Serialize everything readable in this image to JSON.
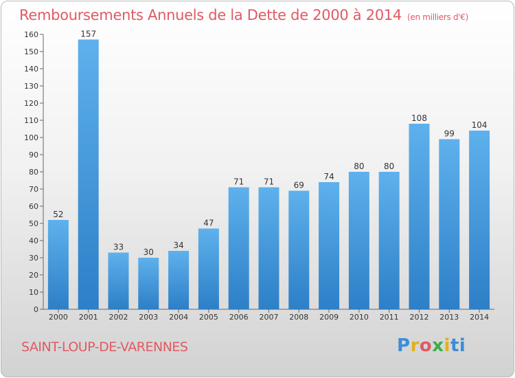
{
  "colors": {
    "accent": "#e05a63",
    "bar_light": "#5eb1ec",
    "bar_dark": "#2d7fc7",
    "brand_letters": [
      "#3c8dd6",
      "#e0b020",
      "#e05a63",
      "#3cad4a",
      "#e0b020",
      "#3c8dd6"
    ]
  },
  "chart_data": {
    "type": "bar",
    "title": "Remboursements Annuels de la Dette de 2000 à 2014",
    "subtitle": "(en milliers d'€)",
    "categories": [
      "2000",
      "2001",
      "2002",
      "2003",
      "2004",
      "2005",
      "2006",
      "2007",
      "2008",
      "2009",
      "2010",
      "2011",
      "2012",
      "2013",
      "2014"
    ],
    "values": [
      52,
      157,
      33,
      30,
      34,
      47,
      71,
      71,
      69,
      74,
      80,
      80,
      108,
      99,
      104
    ],
    "yticks": [
      0,
      10,
      20,
      30,
      40,
      50,
      60,
      70,
      80,
      90,
      100,
      110,
      120,
      130,
      140,
      150,
      160
    ],
    "ylim": [
      0,
      160
    ],
    "grid": false,
    "legend": "none"
  },
  "footer": {
    "town": "SAINT-LOUP-DE-VARENNES",
    "brand": "Proxiti",
    "brand_icon": "proxiti-logo"
  }
}
